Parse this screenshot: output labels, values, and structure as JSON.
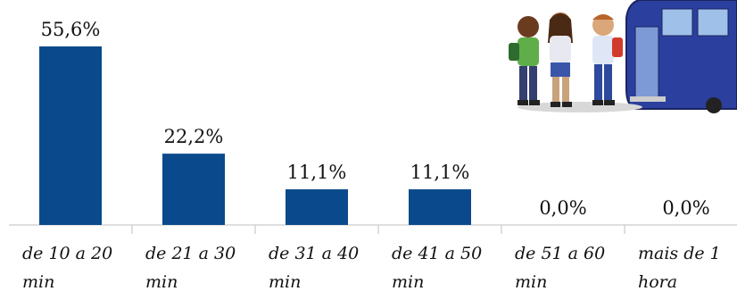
{
  "chart_data": {
    "type": "bar",
    "categories": [
      [
        "de 10 a 20",
        "min"
      ],
      [
        "de 21 a 30",
        "min"
      ],
      [
        "de 31 a 40",
        "min"
      ],
      [
        "de 41 a 50",
        "min"
      ],
      [
        "de 51 a 60",
        "min"
      ],
      [
        "mais de 1",
        "hora"
      ]
    ],
    "values": [
      55.6,
      22.2,
      11.1,
      11.1,
      0.0,
      0.0
    ],
    "value_labels": [
      "55,6%",
      "22,2%",
      "11,1%",
      "11,1%",
      "0,0%",
      "0,0%"
    ],
    "ylim": [
      0,
      60
    ],
    "grid": false,
    "legend": "none",
    "bar_color": "#0a4a8c",
    "illustration": "students-boarding-school-bus"
  }
}
